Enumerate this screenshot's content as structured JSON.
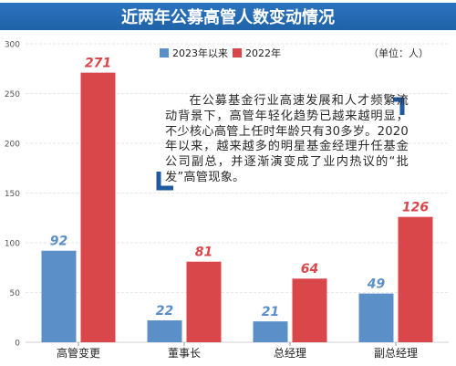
{
  "title": "近两年公募高管人数变动情况",
  "unit_label": "（单位：人）",
  "annotation": "在公募基金行业高速发展和人才频繁流动背景下，高管年轻化趋势已越来越明显，不少核心高管上任时年龄只有30多岁。2020年以来，越来越多的明星基金经理升任基金公司副总，并逐渐演变成了业内热议的“批发”高管现象。",
  "colors": {
    "title_band": "#1f63a8",
    "series_2023": "#5b8fc8",
    "series_2022": "#d9474b",
    "value_2023": "#5b8fc8",
    "value_2022": "#d9474b",
    "bracket": "#1e5aa0",
    "grid": "#cfcfcf"
  },
  "chart_data": {
    "type": "bar",
    "categories": [
      "高管变更",
      "董事长",
      "总经理",
      "副总经理"
    ],
    "series": [
      {
        "name": "2023年以来",
        "values": [
          92,
          22,
          21,
          49
        ]
      },
      {
        "name": "2022年",
        "values": [
          271,
          81,
          64,
          126
        ]
      }
    ],
    "ylim": [
      0,
      300
    ],
    "yticks": [
      0,
      50,
      100,
      150,
      200,
      250,
      300
    ],
    "grid": true,
    "legend_position": "top-left"
  }
}
